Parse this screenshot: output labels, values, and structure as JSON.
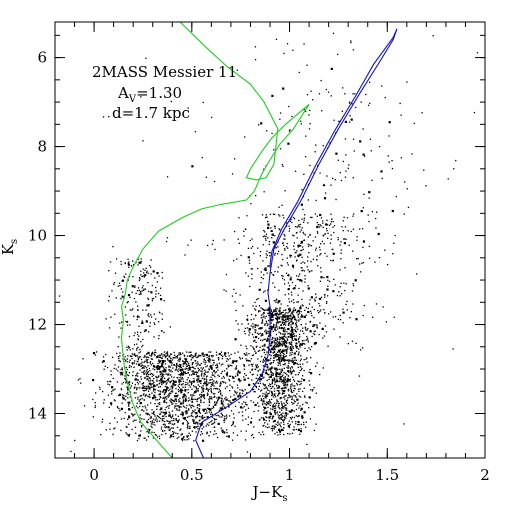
{
  "chart_data": {
    "type": "scatter",
    "title": "",
    "xlabel": "J−K",
    "xlabel_sub": "s",
    "ylabel": "K",
    "ylabel_sub": "s",
    "xlim": [
      -0.2,
      2.0
    ],
    "ylim": [
      15.0,
      5.2
    ],
    "y_inverted": true,
    "grid": false,
    "x_ticks": [
      0,
      0.5,
      1,
      1.5,
      2
    ],
    "x_tick_labels": [
      "0",
      "0.5",
      "1",
      "1.5",
      "2"
    ],
    "y_ticks": [
      6,
      8,
      10,
      12,
      14
    ],
    "y_tick_labels": [
      "6",
      "8",
      "10",
      "12",
      "14"
    ],
    "annotations": {
      "line1": "2MASS Messier 11",
      "line2_prefix": "A",
      "line2_sub": "V",
      "line2_suffix": "=1.30",
      "line3": "d=1.7 kpc"
    },
    "colors": {
      "points": "#000000",
      "isochrone_green": "#22cc22",
      "isochrone_blue": "#1111cc"
    },
    "scatter_regions": [
      {
        "x_center": 0.45,
        "x_spread": 0.33,
        "y_min": 12.6,
        "y_max": 14.6,
        "count": 1700
      },
      {
        "x_center": 0.95,
        "x_spread": 0.13,
        "y_min": 11.6,
        "y_max": 14.5,
        "count": 1300
      },
      {
        "x_center": 0.22,
        "x_spread": 0.13,
        "y_min": 10.5,
        "y_max": 13.5,
        "count": 250
      },
      {
        "x_center": 1.05,
        "x_spread": 0.3,
        "y_min": 9.5,
        "y_max": 12.5,
        "count": 550
      },
      {
        "x_center": 1.2,
        "x_spread": 0.35,
        "y_min": 6.5,
        "y_max": 10.5,
        "count": 130
      },
      {
        "x_center": 0.9,
        "x_spread": 0.9,
        "y_min": 5.3,
        "y_max": 14.9,
        "count": 140
      }
    ],
    "series": [
      {
        "color": "#22cc22",
        "points": [
          [
            0.4,
            15.0
          ],
          [
            0.32,
            14.6
          ],
          [
            0.24,
            14.2
          ],
          [
            0.2,
            13.8
          ],
          [
            0.17,
            13.3
          ],
          [
            0.15,
            12.8
          ],
          [
            0.14,
            12.3
          ],
          [
            0.15,
            11.9
          ],
          [
            0.14,
            11.6
          ],
          [
            0.16,
            11.3
          ],
          [
            0.17,
            11.0
          ],
          [
            0.2,
            10.7
          ],
          [
            0.25,
            10.3
          ],
          [
            0.33,
            9.9
          ],
          [
            0.45,
            9.6
          ],
          [
            0.55,
            9.4
          ],
          [
            0.65,
            9.3
          ],
          [
            0.78,
            9.2
          ],
          [
            0.82,
            9.0
          ],
          [
            0.86,
            8.6
          ],
          [
            0.9,
            8.3
          ],
          [
            0.95,
            7.95
          ],
          [
            1.02,
            7.6
          ],
          [
            1.1,
            7.05
          ],
          [
            0.98,
            7.5
          ],
          [
            0.91,
            7.8
          ],
          [
            0.86,
            8.1
          ],
          [
            0.8,
            8.5
          ],
          [
            0.78,
            8.7
          ],
          [
            0.83,
            8.75
          ],
          [
            0.88,
            8.7
          ],
          [
            0.92,
            8.4
          ],
          [
            0.94,
            7.6
          ],
          [
            0.87,
            7.0
          ],
          [
            0.8,
            6.6
          ],
          [
            0.68,
            6.2
          ],
          [
            0.58,
            5.8
          ],
          [
            0.44,
            5.2
          ]
        ]
      },
      {
        "color": "#1111cc",
        "points": [
          [
            0.56,
            15.0
          ],
          [
            0.52,
            14.6
          ],
          [
            0.55,
            14.2
          ],
          [
            0.68,
            13.85
          ],
          [
            0.8,
            13.5
          ],
          [
            0.86,
            13.1
          ],
          [
            0.89,
            12.7
          ],
          [
            0.9,
            12.3
          ],
          [
            0.9,
            11.9
          ],
          [
            0.9,
            11.6
          ],
          [
            0.89,
            11.3
          ],
          [
            0.9,
            10.85
          ],
          [
            0.92,
            10.3
          ],
          [
            0.98,
            9.8
          ],
          [
            1.06,
            9.2
          ],
          [
            1.15,
            8.4
          ],
          [
            1.25,
            7.6
          ],
          [
            1.36,
            6.8
          ],
          [
            1.46,
            6.1
          ],
          [
            1.53,
            5.6
          ],
          [
            1.55,
            5.35
          ],
          [
            1.53,
            5.55
          ],
          [
            1.43,
            6.15
          ],
          [
            1.34,
            6.85
          ],
          [
            1.23,
            7.65
          ],
          [
            1.13,
            8.45
          ],
          [
            1.04,
            9.25
          ],
          [
            0.96,
            9.85
          ],
          [
            0.91,
            10.35
          ],
          [
            0.9,
            10.65
          ]
        ]
      }
    ]
  }
}
